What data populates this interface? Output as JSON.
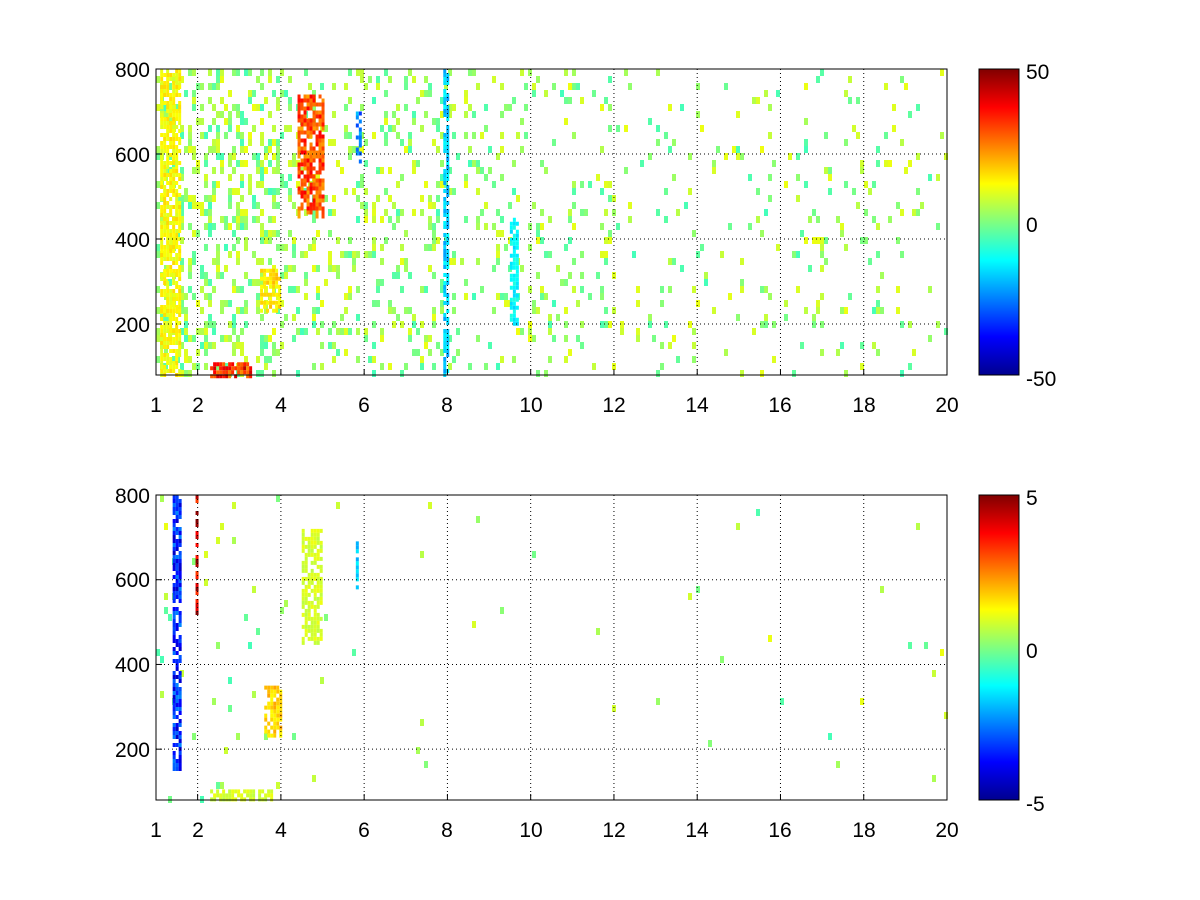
{
  "chart_data": [
    {
      "type": "heatmap",
      "title": "",
      "xlabel": "",
      "ylabel": "",
      "xlim": [
        1,
        20
      ],
      "ylim": [
        80,
        800
      ],
      "x_ticks": [
        1,
        2,
        4,
        6,
        8,
        10,
        12,
        14,
        16,
        18,
        20
      ],
      "x_tick_labels": [
        "1",
        "2",
        "4",
        "6",
        "8",
        "10",
        "12",
        "14",
        "16",
        "18",
        "20"
      ],
      "y_ticks": [
        200,
        400,
        600,
        800
      ],
      "y_tick_labels": [
        "200",
        "400",
        "600",
        "800"
      ],
      "grid": true,
      "colormap": "jet",
      "colorbar": {
        "clim": [
          -50,
          50
        ],
        "tick_labels": [
          "50",
          "0",
          "-50"
        ]
      },
      "features": [
        {
          "x": [
            2.3,
            3.3
          ],
          "y": [
            80,
            110
          ],
          "value": 40
        },
        {
          "x": [
            3.5,
            4.0
          ],
          "y": [
            230,
            330
          ],
          "value": 18
        },
        {
          "x": [
            4.4,
            5.0
          ],
          "y": [
            450,
            740
          ],
          "value": 35
        },
        {
          "x": [
            5.8,
            5.9
          ],
          "y": [
            580,
            700
          ],
          "value": -30
        },
        {
          "x": [
            7.9,
            8.0
          ],
          "y": [
            80,
            800
          ],
          "value": -20
        },
        {
          "x": [
            9.5,
            9.7
          ],
          "y": [
            200,
            450
          ],
          "value": -15
        },
        {
          "x": [
            1.1,
            1.6
          ],
          "y": [
            80,
            800
          ],
          "value": 15
        }
      ]
    },
    {
      "type": "heatmap",
      "title": "",
      "xlabel": "",
      "ylabel": "",
      "xlim": [
        1,
        20
      ],
      "ylim": [
        80,
        800
      ],
      "x_ticks": [
        1,
        2,
        4,
        6,
        8,
        10,
        12,
        14,
        16,
        18,
        20
      ],
      "x_tick_labels": [
        "1",
        "2",
        "4",
        "6",
        "8",
        "10",
        "12",
        "14",
        "16",
        "18",
        "20"
      ],
      "y_ticks": [
        200,
        400,
        600,
        800
      ],
      "y_tick_labels": [
        "200",
        "400",
        "600",
        "800"
      ],
      "grid": true,
      "colormap": "jet",
      "colorbar": {
        "clim": [
          -5,
          5
        ],
        "tick_labels": [
          "5",
          "0",
          "-5"
        ]
      },
      "features": [
        {
          "x": [
            2.3,
            3.8
          ],
          "y": [
            80,
            105
          ],
          "value": 1
        },
        {
          "x": [
            3.6,
            4.0
          ],
          "y": [
            230,
            350
          ],
          "value": 2
        },
        {
          "x": [
            4.5,
            5.0
          ],
          "y": [
            450,
            720
          ],
          "value": 1
        },
        {
          "x": [
            1.95,
            2.0
          ],
          "y": [
            520,
            800
          ],
          "value": 5
        },
        {
          "x": [
            1.4,
            1.6
          ],
          "y": [
            150,
            800
          ],
          "value": -4
        },
        {
          "x": [
            5.8,
            5.85
          ],
          "y": [
            580,
            700
          ],
          "value": -2
        }
      ]
    }
  ]
}
